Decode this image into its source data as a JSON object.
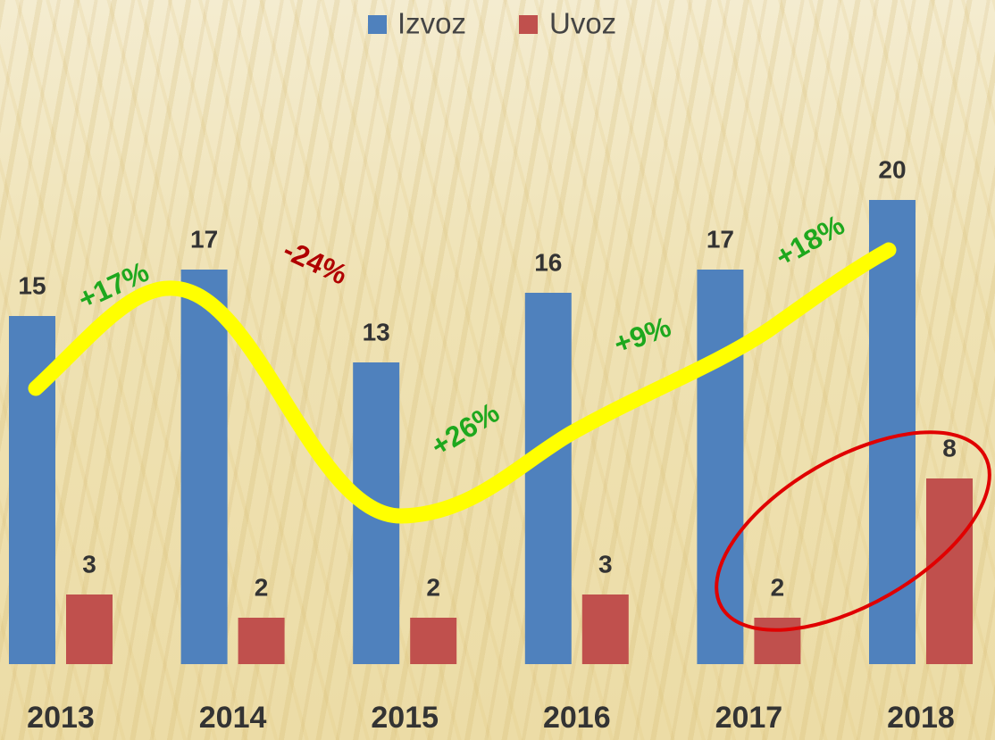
{
  "chart_data": {
    "type": "bar",
    "categories": [
      "2013",
      "2014",
      "2015",
      "2016",
      "2017",
      "2018"
    ],
    "series": [
      {
        "name": "Izvoz",
        "color": "#4f81bd",
        "values": [
          15,
          17,
          13,
          16,
          17,
          20
        ]
      },
      {
        "name": "Uvoz",
        "color": "#c0504d",
        "values": [
          3,
          2,
          2,
          3,
          2,
          8
        ]
      }
    ],
    "annotations": [
      {
        "text": "+17%",
        "color": "#1ea81e"
      },
      {
        "text": "-24%",
        "color": "#b00000"
      },
      {
        "text": "+26%",
        "color": "#1ea81e"
      },
      {
        "text": "+9%",
        "color": "#1ea81e"
      },
      {
        "text": "+18%",
        "color": "#1ea81e"
      }
    ]
  }
}
